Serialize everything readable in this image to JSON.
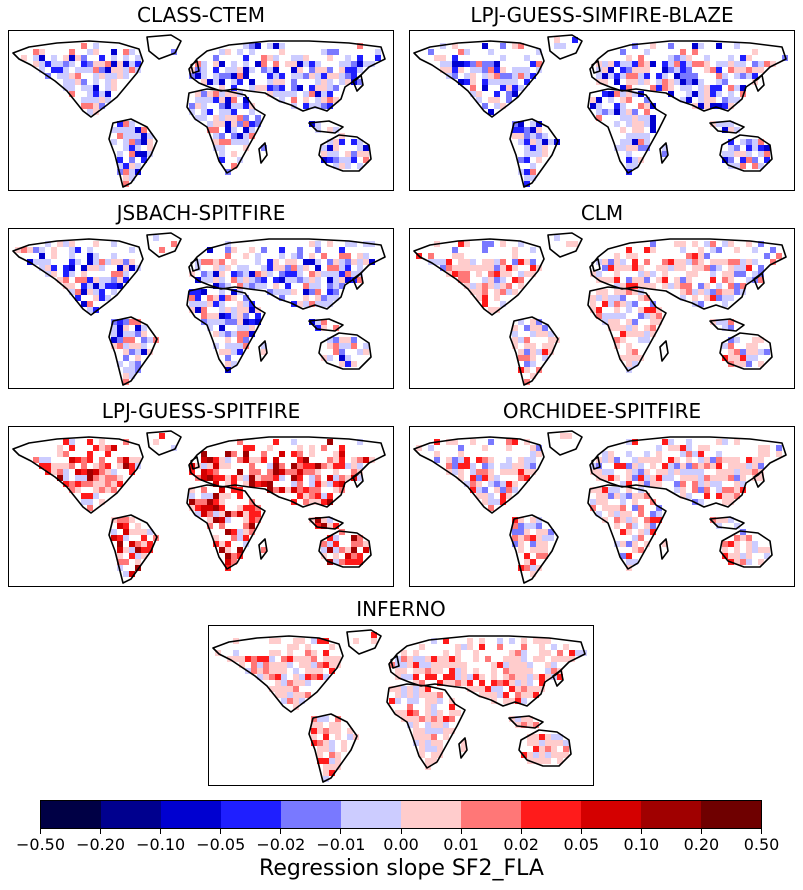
{
  "chart_data": {
    "type": "heatmap",
    "panels": [
      {
        "title": "CLASS-CTEM",
        "dominant": "blue"
      },
      {
        "title": "LPJ-GUESS-SIMFIRE-BLAZE",
        "dominant": "blue"
      },
      {
        "title": "JSBACH-SPITFIRE",
        "dominant": "blue"
      },
      {
        "title": "CLM",
        "dominant": "mixed"
      },
      {
        "title": "LPJ-GUESS-SPITFIRE",
        "dominant": "red"
      },
      {
        "title": "ORCHIDEE-SPITFIRE",
        "dominant": "mixed"
      },
      {
        "title": "INFERNO",
        "dominant": "light-red"
      }
    ],
    "colorbar": {
      "label": "Regression slope SF2_FLA",
      "ticks": [
        "−0.50",
        "−0.20",
        "−0.10",
        "−0.05",
        "−0.02",
        "−0.01",
        "0.00",
        "0.01",
        "0.02",
        "0.05",
        "0.10",
        "0.20",
        "0.50"
      ],
      "colors": [
        "#000045",
        "#00008e",
        "#0000d0",
        "#1f1fff",
        "#7979ff",
        "#ccccff",
        "#ffcccc",
        "#ff7777",
        "#ff1b1b",
        "#d40000",
        "#a00000",
        "#6f0000"
      ]
    }
  }
}
